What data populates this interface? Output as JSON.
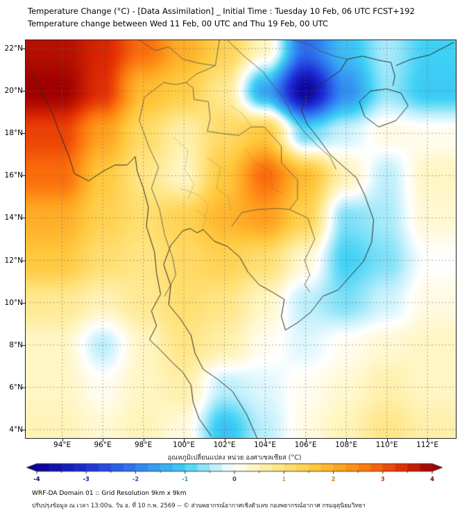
{
  "page": {
    "background": "#ffffff"
  },
  "title": {
    "line1": "Temperature Change (°C) - [Data Assimilation] _ Initial Time : Tuesday 10 Feb, 06 UTC FCST+192",
    "line2": "Temperature change between Wed 11 Feb, 00 UTC and Thu 19 Feb, 00 UTC"
  },
  "footer": {
    "line1": "WRF-DA Domain 01 :: Grid Resolution 9km x 9km",
    "line2": "ปรับปรุงข้อมูล ณ เวลา 13:00น. วัน อ. ที่ 10 ก.พ. 2569 -- © ส่วนพยากรณ์อากาศเชิงตัวเลข กองพยากรณ์อากาศ กรมอุตุนิยมวิทยา"
  },
  "chart_data": {
    "type": "heatmap",
    "title": "Temperature Change (°C) - [Data Assimilation] _ Initial Time : Tuesday 10 Feb, 06 UTC FCST+192",
    "subtitle": "Temperature change between Wed 11 Feb, 00 UTC and Thu 19 Feb, 00 UTC",
    "projection": "lon-lat",
    "view": {
      "lon_min": 92.2,
      "lon_max": 113.4,
      "lat_min": 3.6,
      "lat_max": 22.4
    },
    "lon_ticks": [
      {
        "v": 94,
        "label": "94°E"
      },
      {
        "v": 96,
        "label": "96°E"
      },
      {
        "v": 98,
        "label": "98°E"
      },
      {
        "v": 100,
        "label": "100°E"
      },
      {
        "v": 102,
        "label": "102°E"
      },
      {
        "v": 104,
        "label": "104°E"
      },
      {
        "v": 106,
        "label": "106°E"
      },
      {
        "v": 108,
        "label": "108°E"
      },
      {
        "v": 110,
        "label": "110°E"
      },
      {
        "v": 112,
        "label": "112°E"
      }
    ],
    "lat_ticks": [
      {
        "v": 22,
        "label": "22°N"
      },
      {
        "v": 20,
        "label": "20°N"
      },
      {
        "v": 18,
        "label": "18°N"
      },
      {
        "v": 16,
        "label": "16°N"
      },
      {
        "v": 14,
        "label": "14°N"
      },
      {
        "v": 12,
        "label": "12°N"
      },
      {
        "v": 10,
        "label": "10°N"
      },
      {
        "v": 8,
        "label": "8°N"
      },
      {
        "v": 6,
        "label": "6°N"
      },
      {
        "v": 4,
        "label": "4°N"
      }
    ],
    "gridlines": {
      "show": true,
      "style": "dashed"
    },
    "grid": {
      "unit": "°C",
      "lon": [
        94,
        96,
        98,
        100,
        102,
        104,
        106,
        108,
        110,
        112
      ],
      "lat": [
        22,
        20,
        18,
        16,
        14,
        12,
        10,
        8,
        6,
        4
      ],
      "values": [
        [
          3.8,
          3.5,
          2.8,
          2.0,
          1.4,
          0.4,
          -2.2,
          -1.2,
          -0.5,
          -1.0
        ],
        [
          4.0,
          3.4,
          1.8,
          1.5,
          0.8,
          -1.5,
          -3.9,
          -1.8,
          -0.6,
          -1.1
        ],
        [
          3.2,
          2.2,
          1.2,
          0.6,
          1.2,
          1.6,
          -0.8,
          -0.3,
          0.2,
          0.1
        ],
        [
          2.8,
          1.6,
          0.9,
          0.4,
          1.6,
          2.8,
          1.8,
          0.5,
          -0.4,
          0.4
        ],
        [
          2.0,
          1.4,
          1.1,
          1.4,
          1.9,
          2.2,
          1.4,
          -0.7,
          -0.5,
          0.3
        ],
        [
          1.6,
          1.1,
          0.9,
          1.2,
          1.4,
          1.1,
          0.3,
          -1.0,
          -0.7,
          0.0
        ],
        [
          0.8,
          0.5,
          0.8,
          1.1,
          0.9,
          0.4,
          -0.4,
          -0.7,
          -0.3,
          0.2
        ],
        [
          0.4,
          -0.4,
          0.4,
          0.9,
          0.6,
          0.1,
          -0.2,
          0.1,
          0.3,
          0.4
        ],
        [
          0.4,
          0.1,
          0.4,
          0.6,
          -0.4,
          -0.2,
          0.1,
          0.3,
          0.6,
          0.4
        ],
        [
          0.5,
          0.3,
          0.5,
          0.2,
          -1.2,
          -0.4,
          0.2,
          0.5,
          0.9,
          0.6
        ]
      ]
    },
    "colorbar": {
      "label": "อุณหภูมิเปลี่ยนแปลง หน่วย องศาเซลเซียส (°C)",
      "range": [
        -4,
        4
      ],
      "ticks": [
        {
          "v": -4,
          "label": "-4"
        },
        {
          "v": -3,
          "label": "-3"
        },
        {
          "v": -2,
          "label": "-2"
        },
        {
          "v": -1,
          "label": "-1"
        },
        {
          "v": 0,
          "label": "0"
        },
        {
          "v": 1,
          "label": "1"
        },
        {
          "v": 2,
          "label": "2"
        },
        {
          "v": 3,
          "label": "3"
        },
        {
          "v": 4,
          "label": "4"
        }
      ],
      "stops": [
        {
          "v": -4.0,
          "c": "#0b0096"
        },
        {
          "v": -3.0,
          "c": "#1f2ed6"
        },
        {
          "v": -2.0,
          "c": "#2f7df2"
        },
        {
          "v": -1.0,
          "c": "#3fd1f5"
        },
        {
          "v": -0.4,
          "c": "#bdeffb"
        },
        {
          "v": 0.0,
          "c": "#ffffff"
        },
        {
          "v": 0.4,
          "c": "#fff6c4"
        },
        {
          "v": 1.0,
          "c": "#ffe27a"
        },
        {
          "v": 1.6,
          "c": "#ffc93e"
        },
        {
          "v": 2.2,
          "c": "#ffa01e"
        },
        {
          "v": 2.8,
          "c": "#fb6d0c"
        },
        {
          "v": 3.4,
          "c": "#e22d03"
        },
        {
          "v": 4.0,
          "c": "#9e0000"
        }
      ]
    }
  }
}
